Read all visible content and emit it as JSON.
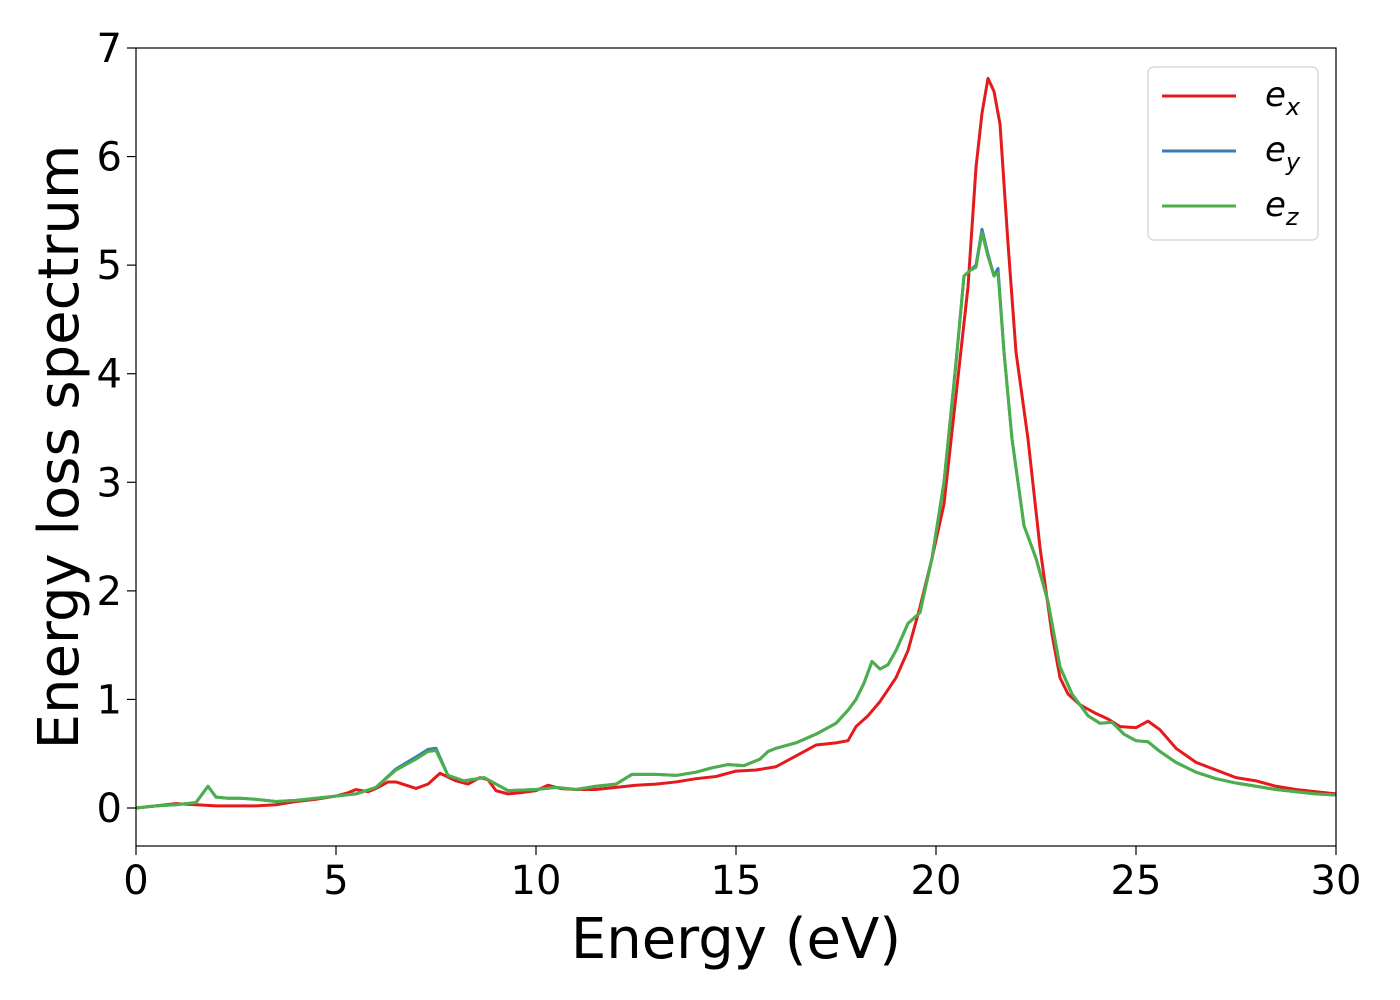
{
  "chart_data": {
    "type": "line",
    "title": "",
    "xlabel": "Energy (eV)",
    "ylabel": "Energy loss spectrum",
    "xlim": [
      0,
      30
    ],
    "ylim": [
      -0.35,
      7
    ],
    "xticks": [
      0,
      5,
      10,
      15,
      20,
      25,
      30
    ],
    "yticks": [
      0,
      1,
      2,
      3,
      4,
      5,
      6,
      7
    ],
    "grid": false,
    "legend_position": "top-right",
    "series": [
      {
        "name": "e_x",
        "base": "e",
        "sub": "x",
        "color": "#e41a1c",
        "x": [
          0,
          0.5,
          1,
          1.5,
          2,
          2.5,
          3,
          3.5,
          4,
          4.5,
          5,
          5.3,
          5.5,
          5.8,
          6,
          6.3,
          6.5,
          7,
          7.3,
          7.6,
          8,
          8.3,
          8.6,
          8.8,
          9,
          9.3,
          9.6,
          10,
          10.3,
          10.6,
          11,
          11.5,
          12,
          12.5,
          13,
          13.5,
          14,
          14.5,
          15,
          15.5,
          16,
          16.5,
          17,
          17.5,
          17.8,
          18,
          18.3,
          18.6,
          19,
          19.3,
          19.6,
          19.9,
          20.2,
          20.5,
          20.8,
          21,
          21.15,
          21.3,
          21.45,
          21.6,
          21.8,
          22,
          22.3,
          22.6,
          22.9,
          23.1,
          23.3,
          23.6,
          24,
          24.3,
          24.6,
          25,
          25.3,
          25.6,
          26,
          26.5,
          27,
          27.5,
          28,
          28.5,
          29,
          29.5,
          30
        ],
        "y": [
          0.0,
          0.02,
          0.04,
          0.03,
          0.02,
          0.02,
          0.02,
          0.03,
          0.06,
          0.08,
          0.11,
          0.14,
          0.17,
          0.15,
          0.18,
          0.24,
          0.24,
          0.18,
          0.22,
          0.32,
          0.25,
          0.22,
          0.28,
          0.26,
          0.16,
          0.13,
          0.14,
          0.16,
          0.21,
          0.18,
          0.17,
          0.17,
          0.19,
          0.21,
          0.22,
          0.24,
          0.27,
          0.29,
          0.34,
          0.35,
          0.38,
          0.48,
          0.58,
          0.6,
          0.62,
          0.75,
          0.85,
          0.98,
          1.2,
          1.45,
          1.85,
          2.3,
          2.8,
          3.8,
          4.8,
          5.9,
          6.4,
          6.72,
          6.6,
          6.3,
          5.2,
          4.2,
          3.4,
          2.4,
          1.6,
          1.2,
          1.05,
          0.95,
          0.87,
          0.82,
          0.75,
          0.74,
          0.8,
          0.72,
          0.55,
          0.42,
          0.35,
          0.28,
          0.25,
          0.2,
          0.17,
          0.15,
          0.13
        ]
      },
      {
        "name": "e_y",
        "base": "e",
        "sub": "y",
        "color": "#377eb8",
        "x": [
          0,
          0.5,
          1,
          1.5,
          1.8,
          2,
          2.3,
          2.6,
          3,
          3.5,
          4,
          4.5,
          5,
          5.5,
          6,
          6.5,
          7,
          7.3,
          7.5,
          7.8,
          8.2,
          8.7,
          9,
          9.3,
          10,
          10.5,
          11,
          11.5,
          12,
          12.4,
          13,
          13.5,
          14,
          14.4,
          14.8,
          15.2,
          15.6,
          15.8,
          16,
          16.5,
          17,
          17.5,
          17.8,
          18,
          18.2,
          18.4,
          18.6,
          18.8,
          19,
          19.3,
          19.6,
          19.9,
          20.2,
          20.5,
          20.7,
          20.85,
          21,
          21.15,
          21.3,
          21.45,
          21.55,
          21.7,
          21.9,
          22.2,
          22.5,
          22.8,
          23.1,
          23.4,
          23.8,
          24.1,
          24.4,
          24.7,
          25,
          25.3,
          25.6,
          26,
          26.5,
          27,
          27.5,
          28,
          28.5,
          29,
          29.5,
          30
        ],
        "y": [
          0.0,
          0.02,
          0.03,
          0.05,
          0.2,
          0.1,
          0.09,
          0.09,
          0.08,
          0.06,
          0.07,
          0.09,
          0.11,
          0.13,
          0.19,
          0.36,
          0.47,
          0.54,
          0.55,
          0.3,
          0.25,
          0.28,
          0.22,
          0.16,
          0.17,
          0.19,
          0.17,
          0.2,
          0.22,
          0.31,
          0.31,
          0.3,
          0.33,
          0.37,
          0.4,
          0.39,
          0.45,
          0.52,
          0.55,
          0.6,
          0.68,
          0.78,
          0.9,
          1.0,
          1.15,
          1.35,
          1.28,
          1.32,
          1.45,
          1.7,
          1.8,
          2.3,
          3.0,
          4.1,
          4.9,
          4.95,
          5.0,
          5.33,
          5.1,
          4.9,
          4.97,
          4.2,
          3.4,
          2.6,
          2.3,
          1.9,
          1.3,
          1.05,
          0.85,
          0.78,
          0.79,
          0.68,
          0.62,
          0.61,
          0.52,
          0.42,
          0.33,
          0.27,
          0.23,
          0.2,
          0.17,
          0.15,
          0.13,
          0.12
        ]
      },
      {
        "name": "e_z",
        "base": "e",
        "sub": "z",
        "color": "#4daf4a",
        "x": [
          0,
          0.5,
          1,
          1.5,
          1.8,
          2,
          2.3,
          2.6,
          3,
          3.5,
          4,
          4.5,
          5,
          5.5,
          6,
          6.5,
          7,
          7.3,
          7.5,
          7.8,
          8.2,
          8.7,
          9,
          9.3,
          10,
          10.5,
          11,
          11.5,
          12,
          12.4,
          13,
          13.5,
          14,
          14.4,
          14.8,
          15.2,
          15.6,
          15.8,
          16,
          16.5,
          17,
          17.5,
          17.8,
          18,
          18.2,
          18.4,
          18.6,
          18.8,
          19,
          19.3,
          19.6,
          19.9,
          20.2,
          20.5,
          20.7,
          20.85,
          21,
          21.15,
          21.3,
          21.45,
          21.55,
          21.7,
          21.9,
          22.2,
          22.5,
          22.8,
          23.1,
          23.4,
          23.8,
          24.1,
          24.4,
          24.7,
          25,
          25.3,
          25.6,
          26,
          26.5,
          27,
          27.5,
          28,
          28.5,
          29,
          29.5,
          30
        ],
        "y": [
          0.0,
          0.02,
          0.03,
          0.05,
          0.2,
          0.1,
          0.09,
          0.09,
          0.08,
          0.06,
          0.07,
          0.09,
          0.11,
          0.13,
          0.19,
          0.35,
          0.45,
          0.52,
          0.53,
          0.3,
          0.25,
          0.28,
          0.22,
          0.16,
          0.17,
          0.19,
          0.17,
          0.2,
          0.22,
          0.31,
          0.31,
          0.3,
          0.33,
          0.37,
          0.4,
          0.39,
          0.45,
          0.52,
          0.55,
          0.6,
          0.68,
          0.78,
          0.9,
          1.0,
          1.15,
          1.35,
          1.28,
          1.32,
          1.45,
          1.7,
          1.8,
          2.3,
          3.0,
          4.1,
          4.9,
          4.95,
          4.98,
          5.3,
          5.08,
          4.9,
          4.93,
          4.2,
          3.4,
          2.6,
          2.3,
          1.9,
          1.3,
          1.05,
          0.85,
          0.78,
          0.79,
          0.68,
          0.62,
          0.61,
          0.52,
          0.42,
          0.33,
          0.27,
          0.23,
          0.2,
          0.17,
          0.15,
          0.13,
          0.12
        ]
      }
    ]
  }
}
